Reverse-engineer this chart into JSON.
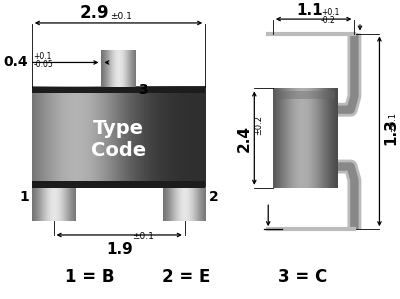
{
  "bg_color": "#ffffff",
  "dim_2p9": "2.9",
  "dim_tol_2p9": "±0.1",
  "dim_0p4": "0.4",
  "dim_tol_0p4_plus": "+0.1",
  "dim_tol_0p4_minus": "-0.05",
  "dim_1p9": "1.9",
  "dim_tol_1p9": "±0.1",
  "dim_1p1": "1.1",
  "dim_tol_1p1_plus": "+0.1",
  "dim_tol_1p1_minus": "-0.2",
  "dim_2p4": "2.4",
  "dim_tol_2p4": "±0.2",
  "dim_1p3": "1.3",
  "dim_tol_1p3": "±0.1",
  "label_1": "1",
  "label_2": "2",
  "label_3": "3",
  "type_code": "Type\nCode",
  "leg1": "1 = B",
  "leg2": "2 = E",
  "leg3": "3 = C"
}
